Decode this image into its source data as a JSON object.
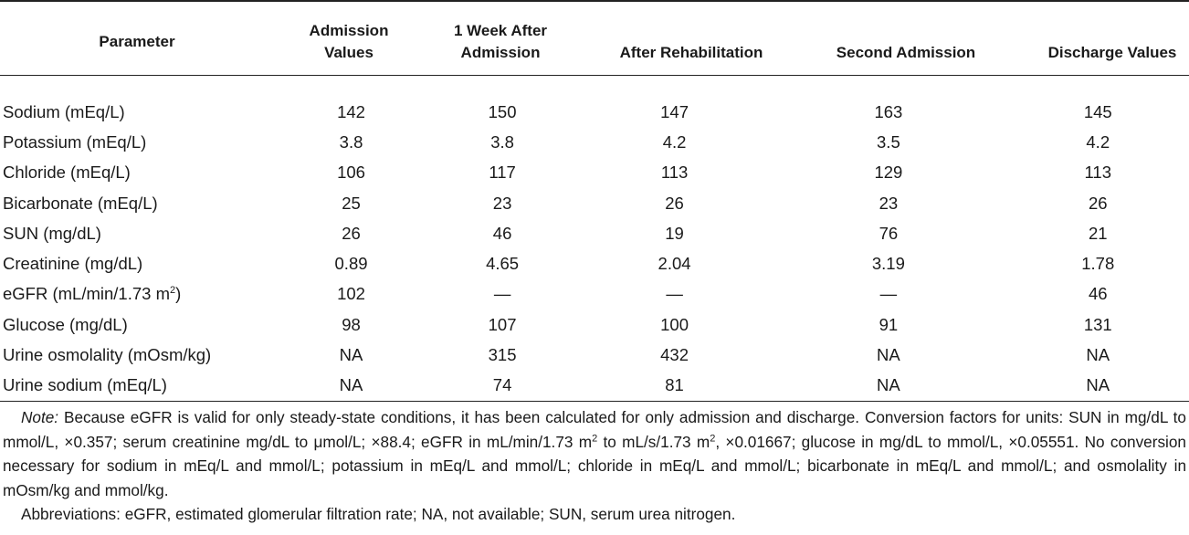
{
  "table": {
    "headers": [
      {
        "line1": "",
        "line2": "Parameter"
      },
      {
        "line1": "Admission",
        "line2": "Values"
      },
      {
        "line1": "1 Week After",
        "line2": "Admission"
      },
      {
        "line1": "",
        "line2": "After Rehabilitation"
      },
      {
        "line1": "",
        "line2": "Second Admission"
      },
      {
        "line1": "",
        "line2": "Discharge Values"
      }
    ],
    "rows": [
      {
        "param": "Sodium (mEq/L)",
        "sup": "",
        "suffix": "",
        "values": [
          "142",
          "150",
          "147",
          "163",
          "145"
        ]
      },
      {
        "param": "Potassium (mEq/L)",
        "sup": "",
        "suffix": "",
        "values": [
          "3.8",
          "3.8",
          "4.2",
          "3.5",
          "4.2"
        ]
      },
      {
        "param": "Chloride (mEq/L)",
        "sup": "",
        "suffix": "",
        "values": [
          "106",
          "117",
          "113",
          "129",
          "113"
        ]
      },
      {
        "param": "Bicarbonate (mEq/L)",
        "sup": "",
        "suffix": "",
        "values": [
          "25",
          "23",
          "26",
          "23",
          "26"
        ]
      },
      {
        "param": "SUN (mg/dL)",
        "sup": "",
        "suffix": "",
        "values": [
          "26",
          "46",
          "19",
          "76",
          "21"
        ]
      },
      {
        "param": "Creatinine (mg/dL)",
        "sup": "",
        "suffix": "",
        "values": [
          "0.89",
          "4.65",
          "2.04",
          "3.19",
          "1.78"
        ]
      },
      {
        "param": "eGFR (mL/min/1.73 m",
        "sup": "2",
        "suffix": ")",
        "values": [
          "102",
          "—",
          "—",
          "—",
          "46"
        ]
      },
      {
        "param": "Glucose (mg/dL)",
        "sup": "",
        "suffix": "",
        "values": [
          "98",
          "107",
          "100",
          "91",
          "131"
        ]
      },
      {
        "param": "Urine osmolality (mOsm/kg)",
        "sup": "",
        "suffix": "",
        "values": [
          "NA",
          "315",
          "432",
          "NA",
          "NA"
        ]
      },
      {
        "param": "Urine sodium (mEq/L)",
        "sup": "",
        "suffix": "",
        "values": [
          "NA",
          "74",
          "81",
          "NA",
          "NA"
        ]
      }
    ]
  },
  "note": {
    "label": "Note:",
    "part1": " Because eGFR is valid for only steady-state conditions, it has been calculated for only admission and discharge. Conversion factors for units: SUN in mg/dL to mmol/L, ×0.357; serum creatinine mg/dL to μmol/L; ×88.4; eGFR in mL/min/1.73 m",
    "sup1": "2",
    "part2": " to mL/s/1.73 m",
    "sup2": "2",
    "part3": ", ×0.01667; glucose in mg/dL to mmol/L, ×0.05551. No conversion necessary for sodium in mEq/L and mmol/L; potassium in mEq/L and mmol/L; chloride in mEq/L and mmol/L; bicarbonate in mEq/L and mmol/L; and osmolality in mOsm/kg and mmol/kg."
  },
  "abbreviations": "Abbreviations: eGFR, estimated glomerular filtration rate; NA, not available; SUN, serum urea nitrogen."
}
